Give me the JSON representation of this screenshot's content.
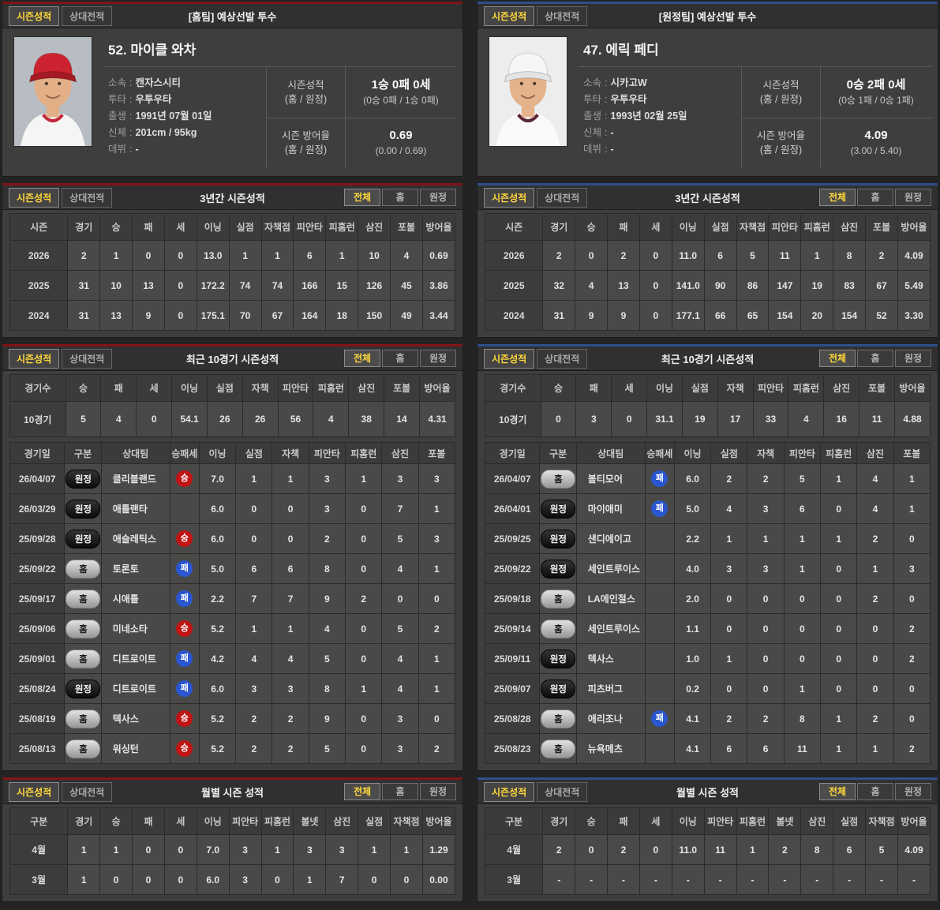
{
  "page": {
    "background": "#232323"
  },
  "badge_colors": {
    "win": "#c01414",
    "lose": "#2a57cf"
  },
  "panels": [
    {
      "team_side": "home",
      "accent_color": "#7e1519",
      "separator": ":",
      "tabs": [
        "시즌성적",
        "상대전적"
      ],
      "filter_tabs": [
        "전체",
        "홈",
        "원정"
      ],
      "header_title": "[홈팀] 예상선발 투수",
      "player": {
        "name": "52. 마이클 와차",
        "details": [
          {
            "label": "소속",
            "value": "캔자스시티"
          },
          {
            "label": "투타",
            "value": "우투우타"
          },
          {
            "label": "출생",
            "value": "1991년 07월 01일"
          },
          {
            "label": "신체",
            "value": "201cm / 95kg"
          },
          {
            "label": "데뷔",
            "value": "-"
          }
        ],
        "season_record": {
          "label": "시즌성적",
          "sublabel": "(홈 / 원정)",
          "main": "1승 0패 0세",
          "sub": "(0승 0패 / 1승 0패)"
        },
        "season_era": {
          "label": "시즌 방어율",
          "sublabel": "(홈 / 원정)",
          "main": "0.69",
          "sub": "(0.00 / 0.69)"
        },
        "photo": {
          "bg": "#b7bdc2",
          "cap": "#cd2330",
          "brim": "#a41a25",
          "jersey": "#f5f5f5",
          "collar": "#c2293a",
          "skin": "#e2af87",
          "hair": "#3d2e22"
        }
      },
      "three_year": {
        "title": "3년간 시즌성적",
        "headers": [
          "시즌",
          "경기",
          "승",
          "패",
          "세",
          "이닝",
          "실점",
          "자책점",
          "피안타",
          "피홈런",
          "삼진",
          "포볼",
          "방어율"
        ],
        "rows": [
          [
            "2026",
            "2",
            "1",
            "0",
            "0",
            "13.0",
            "1",
            "1",
            "6",
            "1",
            "10",
            "4",
            "0.69"
          ],
          [
            "2025",
            "31",
            "10",
            "13",
            "0",
            "172.2",
            "74",
            "74",
            "166",
            "15",
            "126",
            "45",
            "3.86"
          ],
          [
            "2024",
            "31",
            "13",
            "9",
            "0",
            "175.1",
            "70",
            "67",
            "164",
            "18",
            "150",
            "49",
            "3.44"
          ]
        ]
      },
      "recent": {
        "title": "최근 10경기 시즌성적",
        "summary_headers": [
          "경기수",
          "승",
          "패",
          "세",
          "이닝",
          "실점",
          "자책",
          "피안타",
          "피홈런",
          "삼진",
          "포볼",
          "방어율"
        ],
        "summary_rows": [
          [
            "10경기",
            "5",
            "4",
            "0",
            "54.1",
            "26",
            "26",
            "56",
            "4",
            "38",
            "14",
            "4.31"
          ]
        ],
        "log_headers": [
          "경기일",
          "구분",
          "상대팀",
          "승패세",
          "이닝",
          "실점",
          "자책",
          "피안타",
          "피홈런",
          "삼진",
          "포볼"
        ],
        "log_rows": [
          [
            "26/04/07",
            "원정",
            "클리블랜드",
            "승",
            "7.0",
            "1",
            "1",
            "3",
            "1",
            "3",
            "3"
          ],
          [
            "26/03/29",
            "원정",
            "애틀랜타",
            "",
            "6.0",
            "0",
            "0",
            "3",
            "0",
            "7",
            "1"
          ],
          [
            "25/09/28",
            "원정",
            "애슬레틱스",
            "승",
            "6.0",
            "0",
            "0",
            "2",
            "0",
            "5",
            "3"
          ],
          [
            "25/09/22",
            "홈",
            "토론토",
            "패",
            "5.0",
            "6",
            "6",
            "8",
            "0",
            "4",
            "1"
          ],
          [
            "25/09/17",
            "홈",
            "시애틀",
            "패",
            "2.2",
            "7",
            "7",
            "9",
            "2",
            "0",
            "0"
          ],
          [
            "25/09/06",
            "홈",
            "미네소타",
            "승",
            "5.2",
            "1",
            "1",
            "4",
            "0",
            "5",
            "2"
          ],
          [
            "25/09/01",
            "홈",
            "디트로이트",
            "패",
            "4.2",
            "4",
            "4",
            "5",
            "0",
            "4",
            "1"
          ],
          [
            "25/08/24",
            "원정",
            "디트로이트",
            "패",
            "6.0",
            "3",
            "3",
            "8",
            "1",
            "4",
            "1"
          ],
          [
            "25/08/19",
            "홈",
            "텍사스",
            "승",
            "5.2",
            "2",
            "2",
            "9",
            "0",
            "3",
            "0"
          ],
          [
            "25/08/13",
            "홈",
            "워싱턴",
            "승",
            "5.2",
            "2",
            "2",
            "5",
            "0",
            "3",
            "2"
          ]
        ]
      },
      "monthly": {
        "title": "월별 시즌 성적",
        "headers": [
          "구분",
          "경기",
          "승",
          "패",
          "세",
          "이닝",
          "피안타",
          "피홈런",
          "볼넷",
          "삼진",
          "실점",
          "자책점",
          "방어율"
        ],
        "rows": [
          [
            "4월",
            "1",
            "1",
            "0",
            "0",
            "7.0",
            "3",
            "1",
            "3",
            "3",
            "1",
            "1",
            "1.29"
          ],
          [
            "3월",
            "1",
            "0",
            "0",
            "0",
            "6.0",
            "3",
            "0",
            "1",
            "7",
            "0",
            "0",
            "0.00"
          ]
        ]
      }
    },
    {
      "team_side": "away",
      "accent_color": "#2d4f89",
      "separator": ":",
      "tabs": [
        "시즌성적",
        "상대전적"
      ],
      "filter_tabs": [
        "전체",
        "홈",
        "원정"
      ],
      "header_title": "[원정팀] 예상선발 투수",
      "player": {
        "name": "47. 에릭 페디",
        "details": [
          {
            "label": "소속",
            "value": "시카고W"
          },
          {
            "label": "투타",
            "value": "우투우타"
          },
          {
            "label": "출생",
            "value": "1993년 02월 25일"
          },
          {
            "label": "신체",
            "value": "-"
          },
          {
            "label": "데뷔",
            "value": "-"
          }
        ],
        "season_record": {
          "label": "시즌성적",
          "sublabel": "(홈 / 원정)",
          "main": "0승 2패 0세",
          "sub": "(0승 1패 / 0승 1패)"
        },
        "season_era": {
          "label": "시즌 방어율",
          "sublabel": "(홈 / 원정)",
          "main": "4.09",
          "sub": "(3.00 / 5.40)"
        },
        "photo": {
          "bg": "#ededed",
          "cap": "#f6f6f6",
          "brim": "#e4e4e4",
          "jersey": "#fafafa",
          "collar": "#5a2430",
          "skin": "#e4b38b",
          "hair": "#b98c52"
        }
      },
      "three_year": {
        "title": "3년간 시즌성적",
        "headers": [
          "시즌",
          "경기",
          "승",
          "패",
          "세",
          "이닝",
          "실점",
          "자책점",
          "피안타",
          "피홈런",
          "삼진",
          "포볼",
          "방어율"
        ],
        "rows": [
          [
            "2026",
            "2",
            "0",
            "2",
            "0",
            "11.0",
            "6",
            "5",
            "11",
            "1",
            "8",
            "2",
            "4.09"
          ],
          [
            "2025",
            "32",
            "4",
            "13",
            "0",
            "141.0",
            "90",
            "86",
            "147",
            "19",
            "83",
            "67",
            "5.49"
          ],
          [
            "2024",
            "31",
            "9",
            "9",
            "0",
            "177.1",
            "66",
            "65",
            "154",
            "20",
            "154",
            "52",
            "3.30"
          ]
        ]
      },
      "recent": {
        "title": "최근 10경기 시즌성적",
        "summary_headers": [
          "경기수",
          "승",
          "패",
          "세",
          "이닝",
          "실점",
          "자책",
          "피안타",
          "피홈런",
          "삼진",
          "포볼",
          "방어율"
        ],
        "summary_rows": [
          [
            "10경기",
            "0",
            "3",
            "0",
            "31.1",
            "19",
            "17",
            "33",
            "4",
            "16",
            "11",
            "4.88"
          ]
        ],
        "log_headers": [
          "경기일",
          "구분",
          "상대팀",
          "승패세",
          "이닝",
          "실점",
          "자책",
          "피안타",
          "피홈런",
          "삼진",
          "포볼"
        ],
        "log_rows": [
          [
            "26/04/07",
            "홈",
            "볼티모어",
            "패",
            "6.0",
            "2",
            "2",
            "5",
            "1",
            "4",
            "1"
          ],
          [
            "26/04/01",
            "원정",
            "마이애미",
            "패",
            "5.0",
            "4",
            "3",
            "6",
            "0",
            "4",
            "1"
          ],
          [
            "25/09/25",
            "원정",
            "샌디에이고",
            "",
            "2.2",
            "1",
            "1",
            "1",
            "1",
            "2",
            "0"
          ],
          [
            "25/09/22",
            "원정",
            "세인트루이스",
            "",
            "4.0",
            "3",
            "3",
            "1",
            "0",
            "1",
            "3"
          ],
          [
            "25/09/18",
            "홈",
            "LA에인절스",
            "",
            "2.0",
            "0",
            "0",
            "0",
            "0",
            "2",
            "0"
          ],
          [
            "25/09/14",
            "홈",
            "세인트루이스",
            "",
            "1.1",
            "0",
            "0",
            "0",
            "0",
            "0",
            "2"
          ],
          [
            "25/09/11",
            "원정",
            "텍사스",
            "",
            "1.0",
            "1",
            "0",
            "0",
            "0",
            "0",
            "2"
          ],
          [
            "25/09/07",
            "원정",
            "피츠버그",
            "",
            "0.2",
            "0",
            "0",
            "1",
            "0",
            "0",
            "0"
          ],
          [
            "25/08/28",
            "홈",
            "애리조나",
            "패",
            "4.1",
            "2",
            "2",
            "8",
            "1",
            "2",
            "0"
          ],
          [
            "25/08/23",
            "홈",
            "뉴욕메츠",
            "",
            "4.1",
            "6",
            "6",
            "11",
            "1",
            "1",
            "2"
          ]
        ]
      },
      "monthly": {
        "title": "월별 시즌 성적",
        "headers": [
          "구분",
          "경기",
          "승",
          "패",
          "세",
          "이닝",
          "피안타",
          "피홈런",
          "볼넷",
          "삼진",
          "실점",
          "자책점",
          "방어율"
        ],
        "rows": [
          [
            "4월",
            "2",
            "0",
            "2",
            "0",
            "11.0",
            "11",
            "1",
            "2",
            "8",
            "6",
            "5",
            "4.09"
          ],
          [
            "3월",
            "-",
            "-",
            "-",
            "-",
            "-",
            "-",
            "-",
            "-",
            "-",
            "-",
            "-",
            "-"
          ]
        ]
      }
    }
  ]
}
